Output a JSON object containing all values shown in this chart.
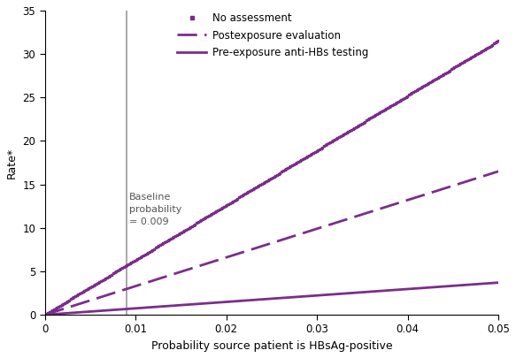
{
  "title": "",
  "xlabel": "Probability source patient is HBsAg-positive",
  "ylabel": "Rate*",
  "xlim": [
    0,
    0.05
  ],
  "ylim": [
    0,
    35
  ],
  "xticks": [
    0,
    0.01,
    0.02,
    0.03,
    0.04,
    0.05
  ],
  "xtick_labels": [
    "0",
    "0.01",
    "0.02",
    "0.03",
    "0.04",
    "0.05"
  ],
  "yticks": [
    0,
    5,
    10,
    15,
    20,
    25,
    30,
    35
  ],
  "line_color": "#7B2D8B",
  "baseline_x": 0.009,
  "baseline_label": "Baseline\nprobability\n= 0.009",
  "legend_labels": [
    "No assessment",
    "Postexposure evaluation",
    "Pre-exposure anti-HBs testing"
  ],
  "slopes": [
    630,
    330,
    74
  ],
  "background_color": "#ffffff",
  "figsize": [
    5.83,
    4.05
  ],
  "dpi": 100
}
